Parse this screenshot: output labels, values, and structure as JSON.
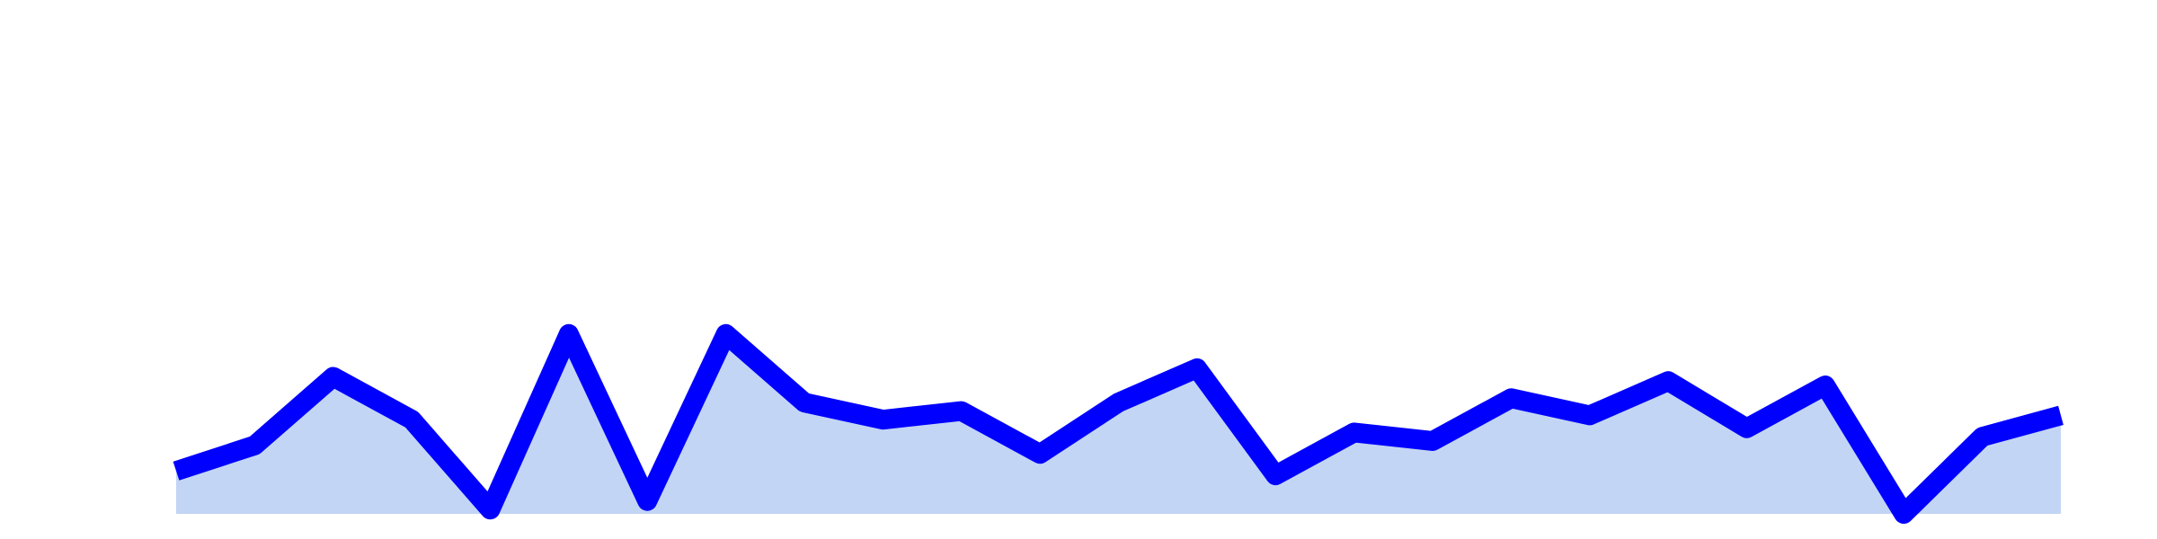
{
  "chart_data": {
    "type": "area",
    "x": [
      1,
      2,
      3,
      4,
      5,
      6,
      7,
      8,
      9,
      10,
      11,
      12,
      13,
      14,
      15,
      16,
      17,
      18,
      19,
      20,
      21,
      22,
      23,
      24,
      25
    ],
    "series": [
      {
        "values": [
          5,
          8,
          16,
          11,
          0.5,
          21,
          1.5,
          21,
          13,
          11,
          12,
          7,
          13,
          17,
          4.5,
          9.5,
          8.5,
          13.5,
          11.5,
          15.5,
          10,
          15,
          0,
          9,
          11.5
        ]
      }
    ],
    "xlim": [
      1,
      25
    ],
    "ylim": [
      0,
      60
    ],
    "grid": false,
    "axes_visible": false,
    "colors": {
      "line": "#0000ff",
      "fill": "#c2d5f5",
      "background": "#ffffff"
    }
  }
}
